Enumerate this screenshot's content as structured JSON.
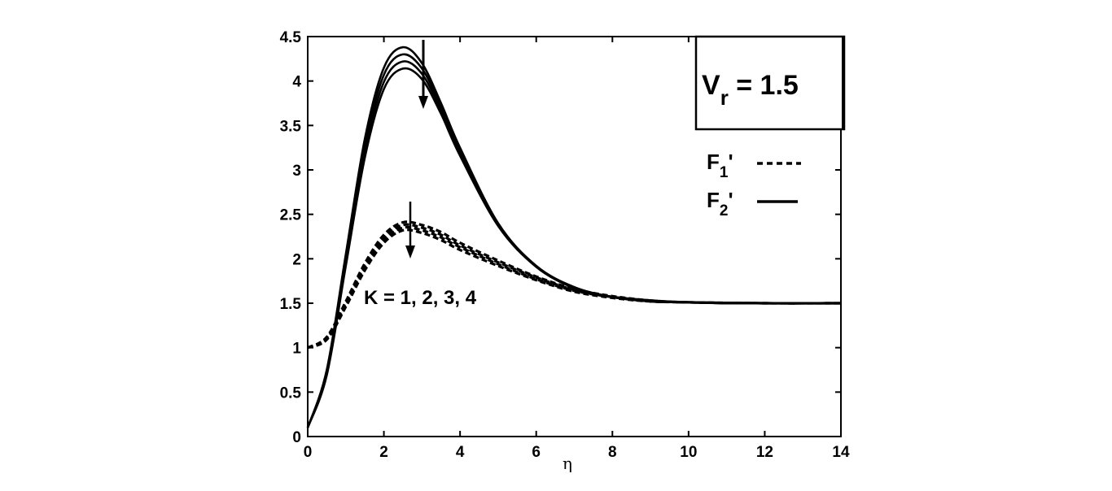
{
  "chart_data": {
    "type": "line",
    "xlabel": "η",
    "ylabel": "",
    "xlim": [
      0,
      14
    ],
    "ylim": [
      0,
      4.5
    ],
    "x_ticks": [
      "0",
      "2",
      "4",
      "6",
      "8",
      "10",
      "12",
      "14"
    ],
    "y_ticks": [
      "0",
      "0.5",
      "1",
      "1.5",
      "2",
      "2.5",
      "3",
      "3.5",
      "4",
      "4.5"
    ],
    "grid": false,
    "legend_position": "right",
    "legend": {
      "f1_label": "F",
      "f1_sub": "1",
      "f1_prime": "'",
      "f2_label": "F",
      "f2_sub": "2",
      "f2_prime": "'"
    },
    "box_label": {
      "text": "V",
      "sub": "r",
      "rest": " = 1.5"
    },
    "annotation": "K = 1, 2, 3, 4",
    "series": [
      {
        "group": "F1'",
        "style": "dashed",
        "x": [
          0,
          0.5,
          1,
          1.5,
          2,
          2.5,
          3,
          3.5,
          4,
          5,
          6,
          7,
          8,
          9,
          10,
          12,
          14
        ],
        "y": [
          1.0,
          1.12,
          1.52,
          1.95,
          2.27,
          2.41,
          2.38,
          2.3,
          2.18,
          1.98,
          1.8,
          1.66,
          1.58,
          1.53,
          1.51,
          1.5,
          1.5
        ]
      },
      {
        "group": "F1'",
        "style": "dashed",
        "x": [
          0,
          0.5,
          1,
          1.5,
          2,
          2.5,
          3,
          3.5,
          4,
          5,
          6,
          7,
          8,
          9,
          10,
          12,
          14
        ],
        "y": [
          1.0,
          1.11,
          1.5,
          1.92,
          2.24,
          2.38,
          2.35,
          2.27,
          2.15,
          1.96,
          1.79,
          1.65,
          1.57,
          1.53,
          1.51,
          1.5,
          1.5
        ]
      },
      {
        "group": "F1'",
        "style": "dashed",
        "x": [
          0,
          0.5,
          1,
          1.5,
          2,
          2.5,
          3,
          3.5,
          4,
          5,
          6,
          7,
          8,
          9,
          10,
          12,
          14
        ],
        "y": [
          1.0,
          1.1,
          1.48,
          1.9,
          2.21,
          2.35,
          2.32,
          2.24,
          2.13,
          1.94,
          1.77,
          1.64,
          1.57,
          1.53,
          1.51,
          1.5,
          1.5
        ]
      },
      {
        "group": "F1'",
        "style": "dashed",
        "x": [
          0,
          0.5,
          1,
          1.5,
          2,
          2.5,
          3,
          3.5,
          4,
          5,
          6,
          7,
          8,
          9,
          10,
          12,
          14
        ],
        "y": [
          1.0,
          1.09,
          1.46,
          1.87,
          2.18,
          2.32,
          2.29,
          2.21,
          2.1,
          1.92,
          1.76,
          1.63,
          1.56,
          1.52,
          1.51,
          1.5,
          1.5
        ]
      },
      {
        "group": "F2'",
        "style": "solid",
        "x": [
          0,
          0.5,
          1,
          1.5,
          2,
          2.5,
          3,
          3.5,
          4,
          5,
          6,
          7,
          8,
          9,
          10,
          11,
          12,
          14
        ],
        "y": [
          0.1,
          0.75,
          2.05,
          3.35,
          4.15,
          4.38,
          4.2,
          3.75,
          3.25,
          2.4,
          1.92,
          1.68,
          1.57,
          1.52,
          1.51,
          1.5,
          1.5,
          1.5
        ]
      },
      {
        "group": "F2'",
        "style": "solid",
        "x": [
          0,
          0.5,
          1,
          1.5,
          2,
          2.5,
          3,
          3.5,
          4,
          5,
          6,
          7,
          8,
          9,
          10,
          11,
          12,
          14
        ],
        "y": [
          0.1,
          0.73,
          2.0,
          3.28,
          4.07,
          4.3,
          4.14,
          3.71,
          3.22,
          2.39,
          1.92,
          1.68,
          1.57,
          1.52,
          1.51,
          1.5,
          1.5,
          1.5
        ]
      },
      {
        "group": "F2'",
        "style": "solid",
        "x": [
          0,
          0.5,
          1,
          1.5,
          2,
          2.5,
          3,
          3.5,
          4,
          5,
          6,
          7,
          8,
          9,
          10,
          11,
          12,
          14
        ],
        "y": [
          0.1,
          0.71,
          1.96,
          3.21,
          3.99,
          4.22,
          4.08,
          3.67,
          3.19,
          2.38,
          1.91,
          1.68,
          1.57,
          1.52,
          1.51,
          1.5,
          1.5,
          1.5
        ]
      },
      {
        "group": "F2'",
        "style": "solid",
        "x": [
          0,
          0.5,
          1,
          1.5,
          2,
          2.5,
          3,
          3.5,
          4,
          5,
          6,
          7,
          8,
          9,
          10,
          11,
          12,
          14
        ],
        "y": [
          0.1,
          0.69,
          1.92,
          3.14,
          3.91,
          4.14,
          4.02,
          3.63,
          3.16,
          2.37,
          1.91,
          1.67,
          1.57,
          1.52,
          1.51,
          1.5,
          1.5,
          1.5
        ]
      }
    ]
  }
}
